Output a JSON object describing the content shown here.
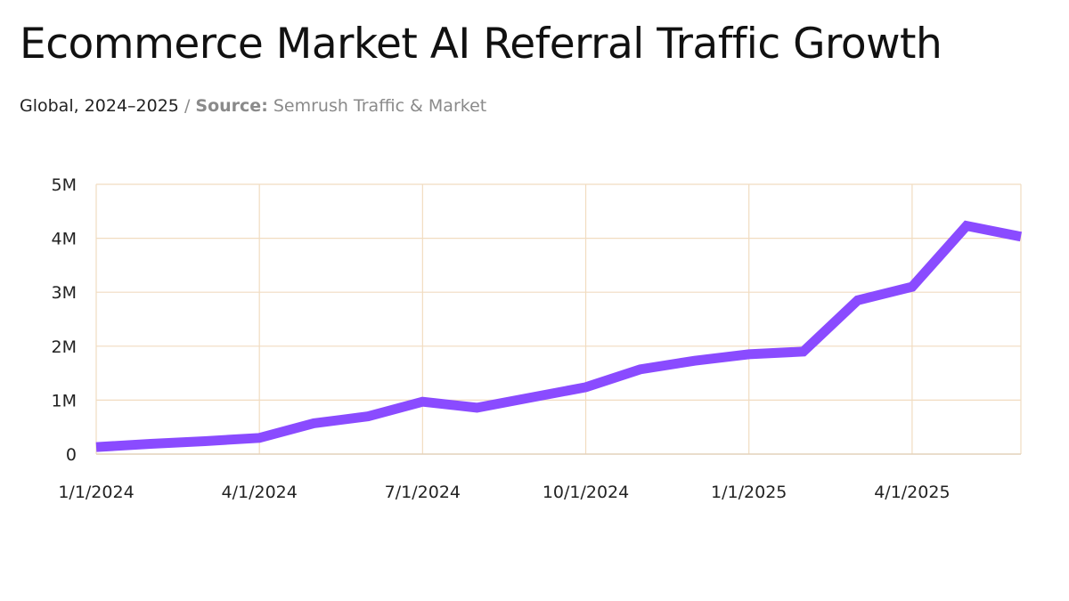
{
  "chart_data": {
    "type": "line",
    "title": "Ecommerce Market AI Referral Traffic Growth",
    "subtitle": {
      "scope": "Global, 2024–2025",
      "separator": "/",
      "source_label": "Source:",
      "source": "Semrush Traffic & Market"
    },
    "xlabel": "",
    "ylabel": "",
    "x": [
      "2024-01",
      "2024-02",
      "2024-03",
      "2024-04",
      "2024-05",
      "2024-06",
      "2024-07",
      "2024-08",
      "2024-09",
      "2024-10",
      "2024-11",
      "2024-12",
      "2025-01",
      "2025-02",
      "2025-03",
      "2025-04",
      "2025-05",
      "2025-06"
    ],
    "series": [
      {
        "name": "AI referral traffic",
        "color": "#8a4bff",
        "values": [
          130000,
          190000,
          240000,
          300000,
          570000,
          700000,
          970000,
          860000,
          1050000,
          1240000,
          1570000,
          1730000,
          1850000,
          1900000,
          2850000,
          3100000,
          4230000,
          4030000
        ]
      }
    ],
    "ylim": [
      0,
      5000000
    ],
    "yticks": [
      {
        "value": 0,
        "label": "0"
      },
      {
        "value": 1000000,
        "label": "1M"
      },
      {
        "value": 2000000,
        "label": "2M"
      },
      {
        "value": 3000000,
        "label": "3M"
      },
      {
        "value": 4000000,
        "label": "4M"
      },
      {
        "value": 5000000,
        "label": "5M"
      }
    ],
    "xticks": [
      {
        "index": 0,
        "label": "1/1/2024"
      },
      {
        "index": 3,
        "label": "4/1/2024"
      },
      {
        "index": 6,
        "label": "7/1/2024"
      },
      {
        "index": 9,
        "label": "10/1/2024"
      },
      {
        "index": 12,
        "label": "1/1/2025"
      },
      {
        "index": 15,
        "label": "4/1/2025"
      }
    ],
    "grid": true,
    "grid_color": "#f1dcc0",
    "legend": "none"
  }
}
